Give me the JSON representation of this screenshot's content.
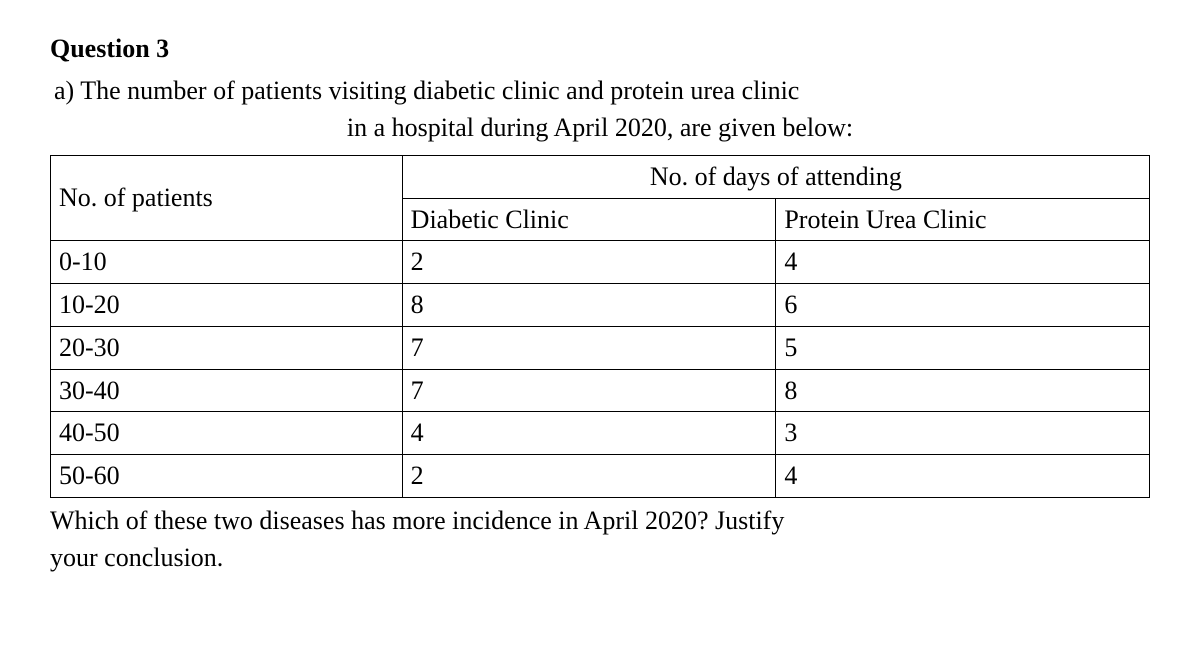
{
  "question": {
    "title": "Question 3",
    "body_line1": "a) The number of patients visiting diabetic clinic and protein urea clinic",
    "body_line2": "in a hospital during April 2020, are given below:"
  },
  "table": {
    "header_patients": "No. of patients",
    "header_attending": "No. of days of attending",
    "subheader_diabetic": "Diabetic Clinic",
    "subheader_protein": "Protein Urea Clinic",
    "rows": [
      {
        "range": "0-10",
        "diabetic": "2",
        "protein": "4"
      },
      {
        "range": "10-20",
        "diabetic": "8",
        "protein": "6"
      },
      {
        "range": "20-30",
        "diabetic": "7",
        "protein": "5"
      },
      {
        "range": "30-40",
        "diabetic": "7",
        "protein": "8"
      },
      {
        "range": "40-50",
        "diabetic": "4",
        "protein": "3"
      },
      {
        "range": "50-60",
        "diabetic": "2",
        "protein": "4"
      }
    ]
  },
  "followup": {
    "line1": "Which of these two diseases has more incidence in April 2020? Justify",
    "line2": "your conclusion."
  },
  "style": {
    "font_family": "Times New Roman",
    "font_size_pt": 20,
    "text_color": "#000000",
    "background_color": "#ffffff",
    "border_color": "#000000"
  }
}
